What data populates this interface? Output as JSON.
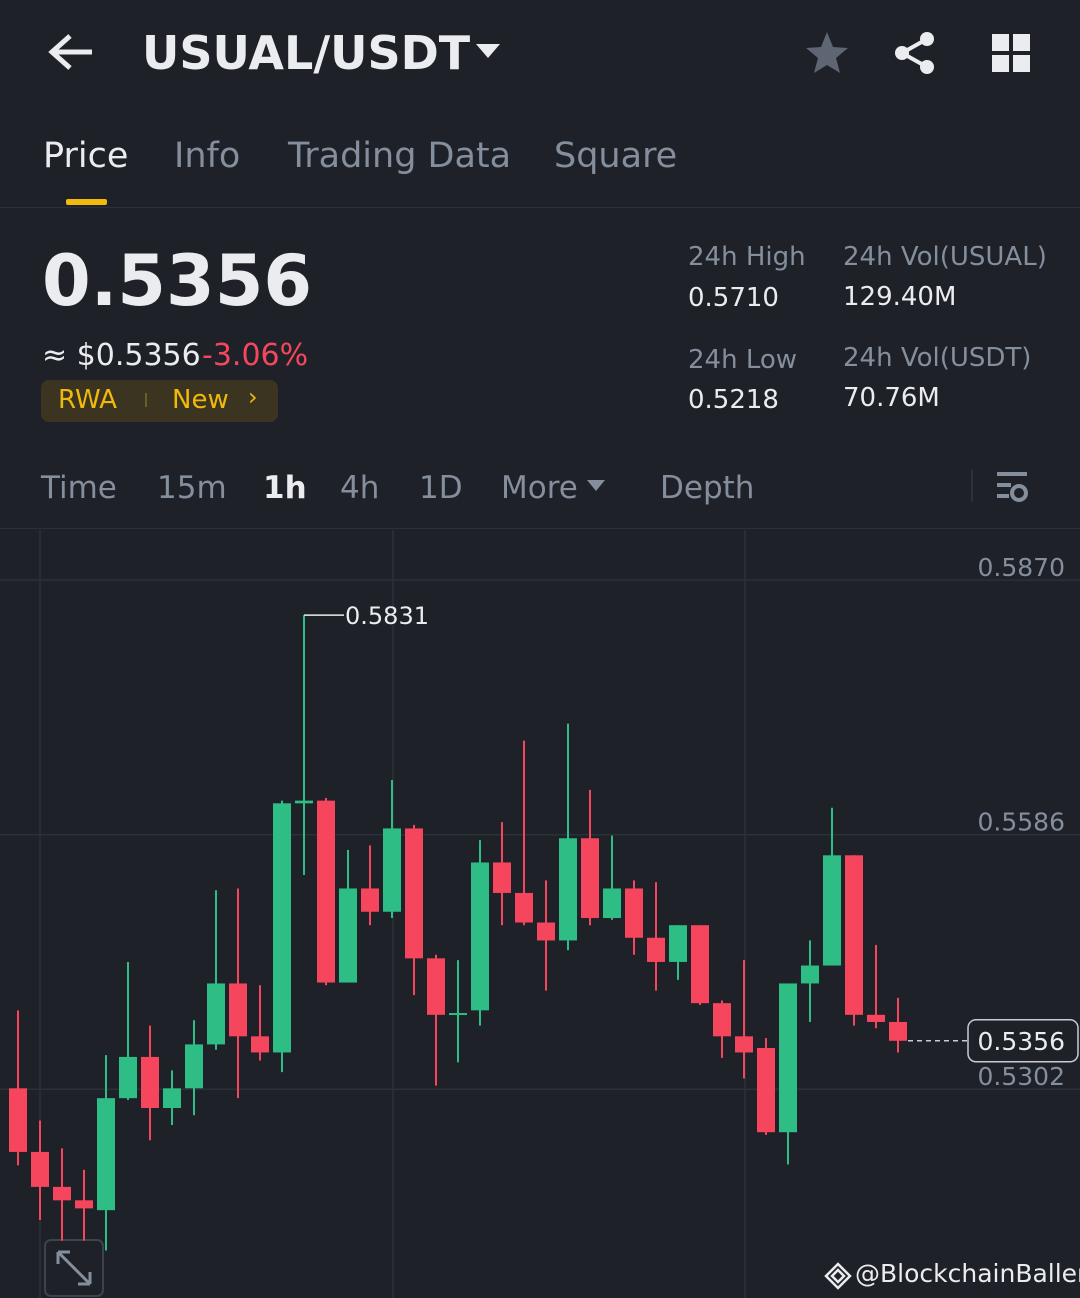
{
  "header": {
    "pair": "USUAL/USDT"
  },
  "tabs": [
    "Price",
    "Info",
    "Trading Data",
    "Square"
  ],
  "price": {
    "last": "0.5356",
    "usd": "≈ $0.5356",
    "change": "-3.06%",
    "tags": [
      "RWA",
      "New"
    ]
  },
  "stats": [
    {
      "label": "24h High",
      "value": "0.5710"
    },
    {
      "label": "24h Vol(USUAL)",
      "value": "129.40M"
    },
    {
      "label": "24h Low",
      "value": "0.5218"
    },
    {
      "label": "24h Vol(USDT)",
      "value": "70.76M"
    }
  ],
  "intervals": [
    "Time",
    "15m",
    "1h",
    "4h",
    "1D",
    "More",
    "Depth"
  ],
  "chart_data": {
    "type": "candlestick",
    "up_color": "#2ebd85",
    "down_color": "#f6465d",
    "ylim": [
      0.5069,
      0.5926
    ],
    "yticks": [
      {
        "value": 0.587,
        "label": "0.5870"
      },
      0.5586,
      0.5302
    ],
    "grid": true,
    "annotations": [
      "0.5831"
    ],
    "last_price": "0.5356",
    "open": [
      0.5303,
      0.5232,
      0.5193,
      0.5178,
      0.5167,
      0.5292,
      0.5338,
      0.5281,
      0.5303,
      0.5352,
      0.542,
      0.5361,
      0.5343,
      0.5621,
      0.5624,
      0.5421,
      0.5526,
      0.55,
      0.5593,
      0.5448,
      0.5385,
      0.539,
      0.5555,
      0.5521,
      0.5488,
      0.5468,
      0.5582,
      0.5493,
      0.5526,
      0.5471,
      0.5444,
      0.5485,
      0.5398,
      0.5361,
      0.5348,
      0.5254,
      0.542,
      0.544,
      0.5563,
      0.5385,
      0.5377
    ],
    "high": [
      0.539,
      0.5267,
      0.5236,
      0.5212,
      0.534,
      0.5444,
      0.5373,
      0.5323,
      0.5379,
      0.5524,
      0.5526,
      0.5418,
      0.5624,
      0.5831,
      0.5627,
      0.5569,
      0.5574,
      0.5647,
      0.5597,
      0.5452,
      0.5446,
      0.558,
      0.56,
      0.5691,
      0.5535,
      0.571,
      0.5636,
      0.5585,
      0.5535,
      0.5533,
      0.5485,
      0.5485,
      0.5401,
      0.5446,
      0.5359,
      0.542,
      0.5468,
      0.5616,
      0.5563,
      0.5463,
      0.5404
    ],
    "low": [
      0.5217,
      0.5156,
      0.5133,
      0.5133,
      0.5122,
      0.529,
      0.5245,
      0.5262,
      0.5273,
      0.5346,
      0.5292,
      0.5334,
      0.5321,
      0.5541,
      0.5418,
      0.5421,
      0.5485,
      0.5493,
      0.5407,
      0.5306,
      0.5332,
      0.5373,
      0.5485,
      0.5485,
      0.5412,
      0.5457,
      0.5485,
      0.5491,
      0.5452,
      0.5412,
      0.5424,
      0.5396,
      0.5337,
      0.5314,
      0.5251,
      0.5218,
      0.5377,
      0.544,
      0.5373,
      0.537,
      0.5343
    ],
    "close": [
      0.5232,
      0.5193,
      0.5178,
      0.5169,
      0.5292,
      0.5338,
      0.5281,
      0.5303,
      0.5352,
      0.542,
      0.5361,
      0.5343,
      0.5621,
      0.5624,
      0.5421,
      0.5526,
      0.55,
      0.5593,
      0.5448,
      0.5385,
      0.5387,
      0.5555,
      0.5521,
      0.5488,
      0.5468,
      0.5582,
      0.5493,
      0.5526,
      0.5471,
      0.5444,
      0.5485,
      0.5398,
      0.5361,
      0.5343,
      0.5254,
      0.542,
      0.544,
      0.5563,
      0.5385,
      0.5377,
      0.5356
    ]
  },
  "watermark": "@BlockchainBaller"
}
